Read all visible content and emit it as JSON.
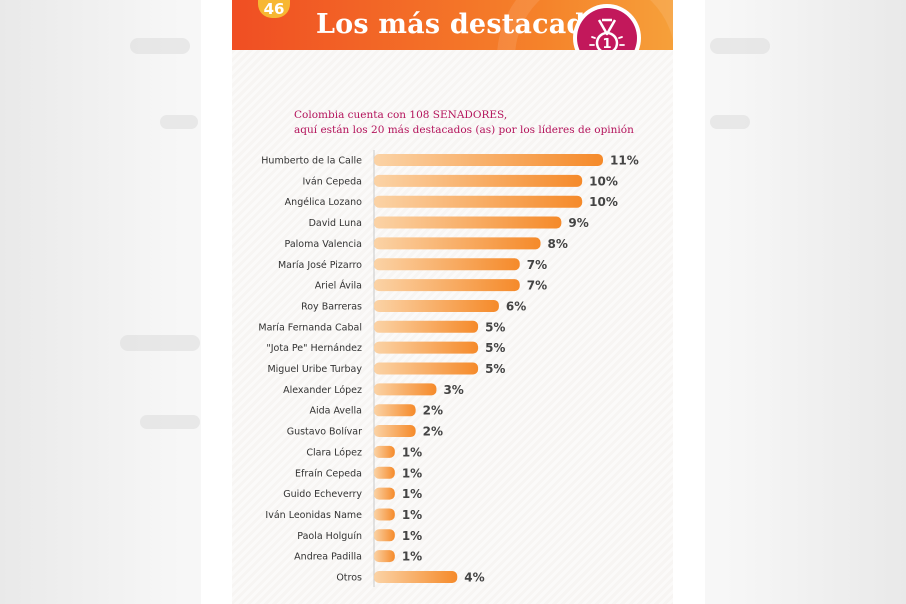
{
  "page": {
    "number": "46",
    "title": "Los más destacados",
    "medal_icon": "first-place-medal-icon",
    "medal_number": "1",
    "subtitle_line1": "Colombia cuenta con 108 SENADORES,",
    "subtitle_line2": "aquí están los 20 más destacados (as) por los líderes de opinión"
  },
  "colors": {
    "header_start": "#f04e23",
    "header_end": "#f6a03a",
    "bar_start": "#fbd3a6",
    "bar_end": "#f58a2a",
    "medal": "#c2185b",
    "subtitle": "#b4145c"
  },
  "chart_data": {
    "type": "bar",
    "orientation": "horizontal",
    "title": "Los más destacados",
    "categories": [
      "Humberto de la Calle",
      "Iván Cepeda",
      "Angélica Lozano",
      "David Luna",
      "Paloma Valencia",
      "María José Pizarro",
      "Ariel Ávila",
      "Roy Barreras",
      "María Fernanda Cabal",
      "\"Jota Pe\" Hernández",
      "Miguel Uribe Turbay",
      "Alexander López",
      "Aida Avella",
      "Gustavo Bolívar",
      "Clara López",
      "Efraín Cepeda",
      "Guido Echeverry",
      "Iván Leonidas Name",
      "Paola Holguín",
      "Andrea Padilla",
      "Otros"
    ],
    "values": [
      11,
      10,
      10,
      9,
      8,
      7,
      7,
      6,
      5,
      5,
      5,
      3,
      2,
      2,
      1,
      1,
      1,
      1,
      1,
      1,
      4
    ],
    "value_labels": [
      "11%",
      "10%",
      "10%",
      "9%",
      "8%",
      "7%",
      "7%",
      "6%",
      "5%",
      "5%",
      "5%",
      "3%",
      "2%",
      "2%",
      "1%",
      "1%",
      "1%",
      "1%",
      "1%",
      "1%",
      "4%"
    ],
    "unit": "%",
    "xlim": [
      0,
      11
    ],
    "grid": false,
    "legend": "none"
  }
}
